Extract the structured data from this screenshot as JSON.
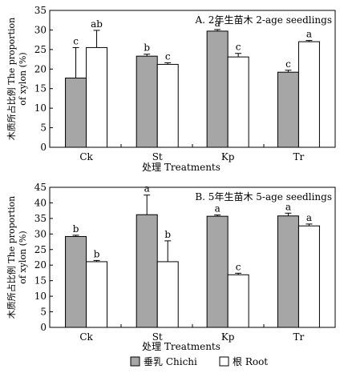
{
  "chart_data": [
    {
      "type": "bar",
      "panel_label": "A. 2年生苗木 2-age seedlings",
      "categories": [
        "Ck",
        "St",
        "Kp",
        "Tr"
      ],
      "series": [
        {
          "name": "垂乳 Chichi",
          "values": [
            17.7,
            23.3,
            29.7,
            19.2
          ],
          "errors": [
            7.8,
            0.5,
            0.4,
            0.5
          ],
          "letters": [
            "c",
            "b",
            "a",
            "c"
          ],
          "color": "#a6a6a6"
        },
        {
          "name": "根 Root",
          "values": [
            25.5,
            21.2,
            23.1,
            27.0
          ],
          "errors": [
            4.4,
            0.4,
            0.9,
            0.3
          ],
          "letters": [
            "ab",
            "c",
            "c",
            "a"
          ],
          "color": "#ffffff"
        }
      ],
      "xlabel": "处理 Treatments",
      "ylabel": "木质所占比例 The proportion of xylon (%)",
      "ylim": [
        0,
        35
      ],
      "yticks": [
        0,
        5,
        10,
        15,
        20,
        25,
        30,
        35
      ]
    },
    {
      "type": "bar",
      "panel_label": "B. 5年生苗木 5-age seedlings",
      "categories": [
        "Ck",
        "St",
        "Kp",
        "Tr"
      ],
      "series": [
        {
          "name": "垂乳 Chichi",
          "values": [
            29.2,
            36.2,
            35.7,
            35.8
          ],
          "errors": [
            0.4,
            6.3,
            0.4,
            0.9
          ],
          "letters": [
            "b",
            "a",
            "a",
            "a"
          ],
          "color": "#a6a6a6"
        },
        {
          "name": "根 Root",
          "values": [
            21.1,
            21.1,
            16.9,
            32.6
          ],
          "errors": [
            0.4,
            6.7,
            0.5,
            0.6
          ],
          "letters": [
            "b",
            "b",
            "c",
            "a"
          ],
          "color": "#ffffff"
        }
      ],
      "xlabel": "处理 Treatments",
      "ylabel": "木质所占比例 The proportion of xylon (%)",
      "ylim": [
        0,
        45
      ],
      "yticks": [
        0,
        5,
        10,
        15,
        20,
        25,
        30,
        35,
        40,
        45
      ]
    }
  ],
  "legend": [
    {
      "label": "垂乳 Chichi",
      "color": "#a6a6a6"
    },
    {
      "label": "根 Root",
      "color": "#ffffff"
    }
  ]
}
